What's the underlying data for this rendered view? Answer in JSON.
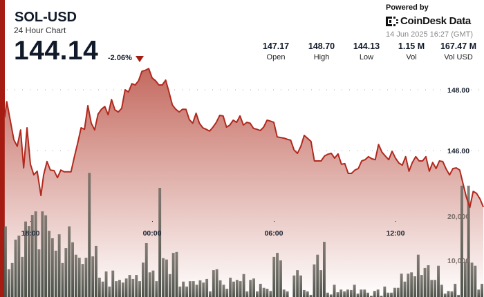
{
  "header": {
    "title": "SOL-USD",
    "subtitle": "24 Hour Chart",
    "price": "144.14",
    "change": "-2.06%",
    "change_direction": "down",
    "change_icon": "triangle-down-icon"
  },
  "stats": [
    {
      "value": "147.17",
      "label": "Open"
    },
    {
      "value": "148.70",
      "label": "High"
    },
    {
      "value": "144.13",
      "label": "Low"
    },
    {
      "value": "1.15 M",
      "label": "Vol"
    },
    {
      "value": "167.47 M",
      "label": "Vol USD"
    }
  ],
  "branding": {
    "powered_by": "Powered by",
    "name": "CoinDesk Data",
    "logo_icon": "coindesk-logo-icon",
    "timestamp": "14 Jun 2025 16:27 (GMT)"
  },
  "colors": {
    "accent": "#a51c12",
    "line": "#b0291e",
    "area_top": "#c46a5f",
    "volume": "#5d6158"
  },
  "chart_data": {
    "type": "area",
    "x_ticks": [
      "18:00",
      "00:00",
      "06:00",
      "12:00"
    ],
    "price_ticks": [
      "148.00",
      "146.00"
    ],
    "volume_ticks": [
      "20,000",
      "10,000"
    ],
    "grid": "dotted",
    "price": [
      [
        "16:44",
        147.09
      ],
      [
        "16:50",
        147.61
      ],
      [
        "17:11",
        146.36
      ],
      [
        "17:21",
        146.14
      ],
      [
        "17:31",
        146.68
      ],
      [
        "17:40",
        145.43
      ],
      [
        "17:50",
        146.75
      ],
      [
        "18:00",
        145.55
      ],
      [
        "18:10",
        145.2
      ],
      [
        "18:20",
        145.32
      ],
      [
        "18:31",
        144.52
      ],
      [
        "18:39",
        145.2
      ],
      [
        "18:49",
        145.64
      ],
      [
        "18:59",
        145.36
      ],
      [
        "19:10",
        145.34
      ],
      [
        "19:20",
        145.11
      ],
      [
        "19:30",
        145.36
      ],
      [
        "19:40",
        145.3
      ],
      [
        "20:00",
        145.3
      ],
      [
        "20:10",
        145.8
      ],
      [
        "20:20",
        146.25
      ],
      [
        "20:30",
        146.75
      ],
      [
        "20:40",
        146.7
      ],
      [
        "20:50",
        147.48
      ],
      [
        "21:00",
        146.9
      ],
      [
        "21:10",
        146.68
      ],
      [
        "21:20",
        147.2
      ],
      [
        "21:30",
        147.36
      ],
      [
        "21:40",
        147.45
      ],
      [
        "21:50",
        147.18
      ],
      [
        "22:00",
        147.68
      ],
      [
        "22:10",
        147.34
      ],
      [
        "22:20",
        147.27
      ],
      [
        "22:30",
        147.39
      ],
      [
        "22:40",
        148.0
      ],
      [
        "22:50",
        147.93
      ],
      [
        "23:00",
        148.2
      ],
      [
        "23:10",
        148.16
      ],
      [
        "23:20",
        148.3
      ],
      [
        "23:30",
        148.61
      ],
      [
        "23:40",
        148.64
      ],
      [
        "23:50",
        148.7
      ],
      [
        "00:00",
        148.39
      ],
      [
        "00:10",
        148.3
      ],
      [
        "00:20",
        148.16
      ],
      [
        "00:30",
        148.16
      ],
      [
        "00:40",
        148.32
      ],
      [
        "00:50",
        147.93
      ],
      [
        "01:00",
        147.5
      ],
      [
        "01:10",
        147.36
      ],
      [
        "01:20",
        147.27
      ],
      [
        "01:30",
        147.36
      ],
      [
        "01:40",
        147.36
      ],
      [
        "01:50",
        147.02
      ],
      [
        "02:00",
        146.9
      ],
      [
        "02:10",
        147.23
      ],
      [
        "02:20",
        146.9
      ],
      [
        "02:30",
        146.75
      ],
      [
        "02:40",
        146.7
      ],
      [
        "02:50",
        146.64
      ],
      [
        "03:00",
        146.77
      ],
      [
        "03:10",
        146.93
      ],
      [
        "03:20",
        147.16
      ],
      [
        "03:30",
        147.14
      ],
      [
        "03:40",
        146.77
      ],
      [
        "03:50",
        146.84
      ],
      [
        "04:00",
        147.0
      ],
      [
        "04:10",
        146.93
      ],
      [
        "04:20",
        147.14
      ],
      [
        "04:30",
        146.84
      ],
      [
        "04:40",
        146.93
      ],
      [
        "04:50",
        146.9
      ],
      [
        "05:00",
        146.73
      ],
      [
        "05:10",
        146.7
      ],
      [
        "05:20",
        146.66
      ],
      [
        "05:30",
        146.77
      ],
      [
        "05:40",
        147.0
      ],
      [
        "05:50",
        146.97
      ],
      [
        "06:00",
        146.93
      ],
      [
        "06:10",
        146.45
      ],
      [
        "06:20",
        146.43
      ],
      [
        "06:30",
        146.41
      ],
      [
        "06:40",
        146.37
      ],
      [
        "06:50",
        146.34
      ],
      [
        "07:00",
        146.02
      ],
      [
        "07:10",
        145.91
      ],
      [
        "07:20",
        146.14
      ],
      [
        "07:30",
        146.5
      ],
      [
        "07:40",
        146.4
      ],
      [
        "07:50",
        146.3
      ],
      [
        "08:00",
        145.66
      ],
      [
        "08:10",
        145.66
      ],
      [
        "08:20",
        145.66
      ],
      [
        "08:30",
        145.82
      ],
      [
        "08:40",
        145.88
      ],
      [
        "08:50",
        145.91
      ],
      [
        "09:00",
        145.75
      ],
      [
        "09:10",
        145.89
      ],
      [
        "09:20",
        145.55
      ],
      [
        "09:30",
        145.57
      ],
      [
        "09:40",
        145.25
      ],
      [
        "09:50",
        145.25
      ],
      [
        "10:00",
        145.36
      ],
      [
        "10:10",
        145.41
      ],
      [
        "10:20",
        145.66
      ],
      [
        "10:30",
        145.7
      ],
      [
        "10:40",
        145.8
      ],
      [
        "10:50",
        145.73
      ],
      [
        "11:00",
        145.7
      ],
      [
        "11:10",
        146.2
      ],
      [
        "11:20",
        145.95
      ],
      [
        "11:30",
        145.82
      ],
      [
        "11:40",
        145.7
      ],
      [
        "11:50",
        145.98
      ],
      [
        "12:00",
        145.75
      ],
      [
        "12:10",
        145.59
      ],
      [
        "12:20",
        145.52
      ],
      [
        "12:30",
        145.8
      ],
      [
        "12:40",
        145.32
      ],
      [
        "12:50",
        145.61
      ],
      [
        "13:00",
        145.8
      ],
      [
        "13:10",
        145.66
      ],
      [
        "13:20",
        145.66
      ],
      [
        "13:30",
        145.8
      ],
      [
        "13:40",
        145.32
      ],
      [
        "13:50",
        145.61
      ],
      [
        "14:00",
        145.41
      ],
      [
        "14:10",
        145.66
      ],
      [
        "14:20",
        145.64
      ],
      [
        "14:30",
        145.39
      ],
      [
        "14:40",
        145.2
      ],
      [
        "14:50",
        145.41
      ],
      [
        "15:00",
        145.43
      ],
      [
        "15:10",
        145.36
      ],
      [
        "15:20",
        144.9
      ],
      [
        "15:30",
        144.45
      ],
      [
        "15:40",
        144.13
      ],
      [
        "15:50",
        144.66
      ],
      [
        "16:00",
        144.59
      ],
      [
        "16:10",
        144.41
      ],
      [
        "16:20",
        144.14
      ]
    ],
    "volume": [
      17700,
      8000,
      9400,
      14700,
      15600,
      10800,
      18800,
      17800,
      20300,
      21100,
      12500,
      21100,
      20200,
      16700,
      15000,
      12200,
      15900,
      9400,
      12800,
      17700,
      14100,
      11300,
      10600,
      9200,
      10600,
      29800,
      10900,
      13300,
      6100,
      5200,
      7500,
      4100,
      7700,
      5300,
      5600,
      5000,
      5900,
      6700,
      5800,
      6700,
      5300,
      9500,
      13900,
      7300,
      7700,
      5300,
      26400,
      10500,
      10200,
      6900,
      11700,
      11900,
      4100,
      5200,
      4100,
      5300,
      5300,
      4500,
      5500,
      5000,
      5800,
      3000,
      7800,
      8000,
      5500,
      4500,
      3600,
      6100,
      5200,
      5600,
      5300,
      6900,
      3000,
      5600,
      5900,
      3000,
      4700,
      3800,
      3600,
      3100,
      10800,
      11700,
      10000,
      3400,
      3000,
      1000,
      6600,
      7800,
      6600,
      3300,
      3000,
      2200,
      9100,
      11300,
      7800,
      14200,
      2700,
      2300,
      4500,
      2800,
      3400,
      3000,
      3400,
      3300,
      4500,
      2500,
      3400,
      3400,
      2700,
      2000,
      3100,
      3400,
      2000,
      4100,
      2700,
      2700,
      3800,
      3800,
      7000,
      5200,
      7000,
      7300,
      6400,
      11300,
      6700,
      8300,
      8900,
      5600,
      5600,
      8800,
      4500,
      2500,
      3100,
      3000,
      4700,
      2200,
      26900,
      9700,
      26900,
      9500,
      8800,
      3400,
      4700
    ]
  }
}
